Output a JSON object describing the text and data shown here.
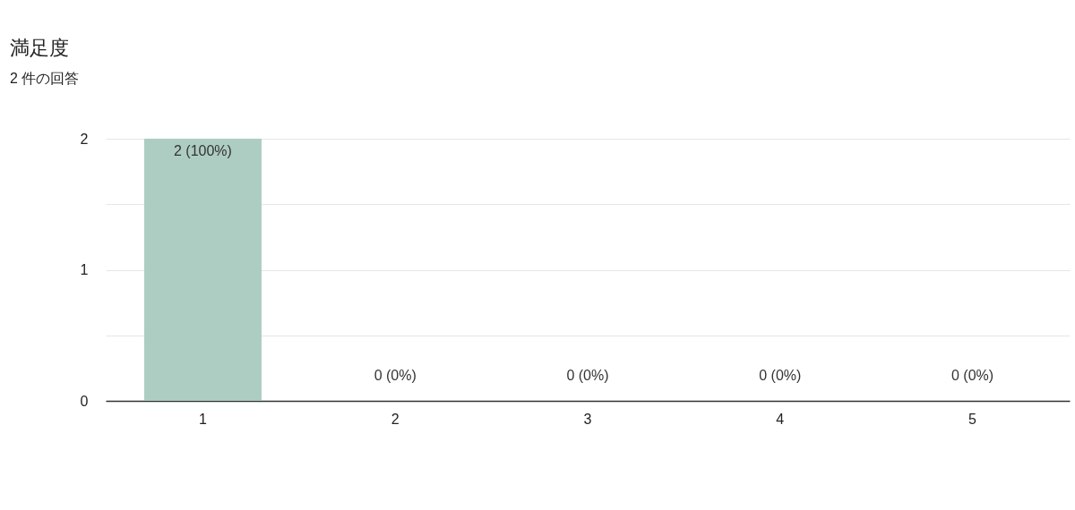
{
  "chart_data": {
    "type": "bar",
    "title": "満足度",
    "subtitle": "2 件の回答",
    "categories": [
      "1",
      "2",
      "3",
      "4",
      "5"
    ],
    "values": [
      2,
      0,
      0,
      0,
      0
    ],
    "value_labels": [
      "2 (100%)",
      "0 (0%)",
      "0 (0%)",
      "0 (0%)",
      "0 (0%)"
    ],
    "color": "#aecdc2",
    "ylim": [
      0,
      2
    ],
    "yticks": [
      0,
      {
        "value": 0.5,
        "label": null
      },
      1,
      {
        "value": 1.5,
        "label": null
      },
      2
    ],
    "grid": "y"
  }
}
